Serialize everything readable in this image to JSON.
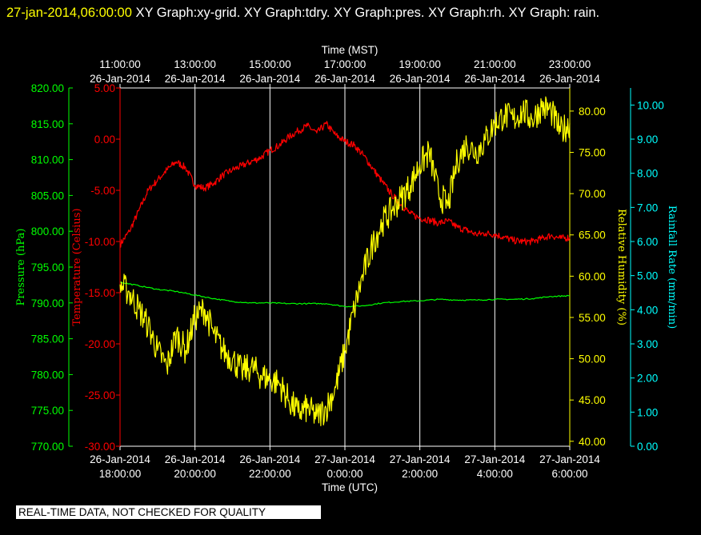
{
  "header": {
    "timestamp": "27-jan-2014,06:00:00",
    "titles": "XY Graph:xy-grid.  XY Graph:tdry.  XY Graph:pres.  XY Graph:rh.  XY Graph: rain."
  },
  "qc_banner": "REAL-TIME DATA, NOT CHECKED FOR QUALITY",
  "colors": {
    "background": "#000000",
    "temperature": "#ff0000",
    "pressure": "#00ff00",
    "humidity": "#ffff00",
    "rain": "#00ffff",
    "grid": "#ffffff"
  },
  "chart_data": {
    "type": "line",
    "grid": true,
    "x_bottom": {
      "label": "Time (UTC)",
      "ticks": [
        {
          "date": "26-Jan-2014",
          "time": "18:00:00"
        },
        {
          "date": "26-Jan-2014",
          "time": "20:00:00"
        },
        {
          "date": "26-Jan-2014",
          "time": "22:00:00"
        },
        {
          "date": "27-Jan-2014",
          "time": "0:00:00"
        },
        {
          "date": "27-Jan-2014",
          "time": "2:00:00"
        },
        {
          "date": "27-Jan-2014",
          "time": "4:00:00"
        },
        {
          "date": "27-Jan-2014",
          "time": "6:00:00"
        }
      ]
    },
    "x_top": {
      "label": "Time (MST)",
      "ticks": [
        {
          "time": "11:00:00",
          "date": "26-Jan-2014"
        },
        {
          "time": "13:00:00",
          "date": "26-Jan-2014"
        },
        {
          "time": "15:00:00",
          "date": "26-Jan-2014"
        },
        {
          "time": "17:00:00",
          "date": "26-Jan-2014"
        },
        {
          "time": "19:00:00",
          "date": "26-Jan-2014"
        },
        {
          "time": "21:00:00",
          "date": "26-Jan-2014"
        },
        {
          "time": "23:00:00",
          "date": "26-Jan-2014"
        }
      ]
    },
    "xlim_hours_utc": [
      18,
      30
    ],
    "axes": {
      "pressure": {
        "label": "Pressure (hPa)",
        "ylim": [
          770,
          820
        ],
        "ticks": [
          "770.00",
          "775.00",
          "780.00",
          "785.00",
          "790.00",
          "795.00",
          "800.00",
          "805.00",
          "810.00",
          "815.00",
          "820.00"
        ]
      },
      "temperature": {
        "label": "Temperature (Celsius)",
        "ylim": [
          -30,
          5
        ],
        "ticks": [
          "-30.00",
          "-25.00",
          "-20.00",
          "-15.00",
          "-10.00",
          "-5.00",
          "0.00",
          "5.00"
        ]
      },
      "humidity": {
        "label": "Relative Humidity (%)",
        "ylim": [
          39.4,
          82.8
        ],
        "ticks": [
          "40.00",
          "45.00",
          "50.00",
          "55.00",
          "60.00",
          "65.00",
          "70.00",
          "75.00",
          "80.00"
        ]
      },
      "rain": {
        "label": "Rainfall Rate (mm/min)",
        "ylim": [
          0,
          10.5
        ],
        "ticks": [
          "0.00",
          "1.00",
          "2.00",
          "3.00",
          "4.00",
          "5.00",
          "6.00",
          "7.00",
          "8.00",
          "9.00",
          "10.00"
        ]
      }
    },
    "series": [
      {
        "name": "tdry",
        "axis": "temperature",
        "x": [
          18.0,
          18.25,
          18.5,
          18.75,
          19.0,
          19.25,
          19.5,
          19.75,
          20.0,
          20.25,
          20.5,
          20.75,
          21.0,
          21.25,
          21.5,
          21.75,
          22.0,
          22.25,
          22.5,
          22.75,
          23.0,
          23.25,
          23.5,
          23.75,
          24.0,
          24.25,
          24.5,
          24.75,
          25.0,
          25.25,
          25.5,
          25.75,
          26.0,
          26.25,
          26.5,
          26.75,
          27.0,
          27.25,
          27.5,
          27.75,
          28.0,
          28.25,
          28.5,
          28.75,
          29.0,
          29.25,
          29.5,
          29.75,
          30.0
        ],
        "y": [
          -10.3,
          -9.0,
          -7.0,
          -5.0,
          -4.0,
          -3.0,
          -2.2,
          -2.8,
          -4.5,
          -4.8,
          -4.3,
          -3.5,
          -3.0,
          -2.6,
          -2.2,
          -1.8,
          -1.1,
          -0.6,
          0.2,
          0.8,
          1.3,
          0.6,
          1.5,
          0.4,
          -0.2,
          -0.6,
          -1.6,
          -2.9,
          -4.2,
          -5.4,
          -6.4,
          -7.3,
          -7.7,
          -7.9,
          -8.2,
          -8.0,
          -8.6,
          -8.9,
          -9.3,
          -9.2,
          -9.3,
          -9.6,
          -9.9,
          -10.0,
          -10.0,
          -9.7,
          -9.4,
          -9.7,
          -9.6
        ]
      },
      {
        "name": "pres",
        "axis": "pressure",
        "x": [
          18.0,
          18.5,
          19.0,
          19.5,
          20.0,
          20.5,
          21.0,
          21.5,
          22.0,
          22.5,
          23.0,
          23.5,
          24.0,
          24.5,
          25.0,
          25.5,
          26.0,
          26.5,
          27.0,
          27.5,
          28.0,
          28.5,
          29.0,
          29.5,
          30.0
        ],
        "y": [
          792.9,
          792.4,
          791.9,
          791.6,
          791.1,
          790.6,
          790.2,
          790.0,
          790.0,
          789.9,
          789.9,
          789.9,
          789.5,
          789.6,
          790.0,
          790.2,
          790.3,
          790.5,
          790.4,
          790.4,
          790.5,
          790.5,
          790.6,
          790.9,
          791.0
        ]
      },
      {
        "name": "rh",
        "axis": "humidity",
        "x": [
          18.0,
          18.25,
          18.5,
          18.75,
          19.0,
          19.25,
          19.5,
          19.75,
          20.0,
          20.25,
          20.5,
          20.75,
          21.0,
          21.25,
          21.5,
          21.75,
          22.0,
          22.25,
          22.5,
          22.75,
          23.0,
          23.25,
          23.5,
          23.75,
          24.0,
          24.25,
          24.5,
          24.75,
          25.0,
          25.25,
          25.5,
          25.75,
          26.0,
          26.25,
          26.5,
          26.75,
          27.0,
          27.25,
          27.5,
          27.75,
          28.0,
          28.25,
          28.5,
          28.75,
          29.0,
          29.25,
          29.5,
          29.75,
          30.0
        ],
        "y": [
          59.0,
          58.0,
          56.0,
          54.0,
          51.0,
          49.0,
          53.0,
          51.0,
          55.0,
          56.0,
          53.0,
          51.0,
          50.0,
          48.5,
          49.0,
          48.0,
          47.5,
          47.0,
          45.0,
          43.5,
          44.0,
          43.0,
          44.0,
          46.5,
          51.0,
          56.0,
          60.5,
          64.0,
          66.5,
          68.0,
          69.5,
          71.0,
          73.5,
          75.0,
          70.0,
          68.5,
          74.0,
          76.0,
          75.0,
          76.5,
          78.5,
          79.5,
          79.0,
          80.0,
          79.0,
          80.5,
          80.0,
          77.5,
          78.5
        ]
      },
      {
        "name": "rain",
        "axis": "rain",
        "x": [],
        "y": []
      }
    ]
  }
}
